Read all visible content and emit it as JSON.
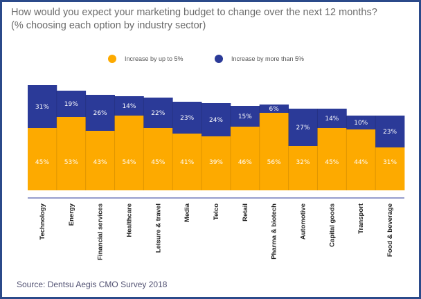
{
  "title_line1": "How would you expect your marketing budget to change over the next 12 months?",
  "title_line2": "(% choosing each option by industry sector)",
  "source": "Source: Dentsu Aegis CMO Survey 2018",
  "colors": {
    "increase_up_to_5": "#FDAA00",
    "increase_more_than_5": "#2B3A98"
  },
  "chart_data": {
    "type": "bar",
    "stacked": true,
    "title": "How would you expect your marketing budget to change over the next 12 months?",
    "subtitle": "(% choosing each option by industry sector)",
    "xlabel": "",
    "ylabel": "",
    "grid": false,
    "legend_position": "top",
    "categories": [
      "Technology",
      "Energy",
      "Financial services",
      "Healthcare",
      "Leisure & travel",
      "Media",
      "Telco",
      "Retail",
      "Pharma & biotech",
      "Automotive",
      "Capital goods",
      "Transport",
      "Food & beverage"
    ],
    "series": [
      {
        "name": "Increase by up to 5%",
        "values": [
          45,
          53,
          43,
          54,
          45,
          41,
          39,
          46,
          56,
          32,
          45,
          44,
          31
        ],
        "labels": [
          "45%",
          "53%",
          "43%",
          "54%",
          "45%",
          "41%",
          "39%",
          "46%",
          "56%",
          "32%",
          "45%",
          "44%",
          "31%"
        ]
      },
      {
        "name": "Increase by more than 5%",
        "values": [
          31,
          19,
          26,
          14,
          22,
          23,
          24,
          15,
          6,
          27,
          14,
          10,
          23
        ],
        "labels": [
          "31%",
          "19%",
          "26%",
          "14%",
          "22%",
          "23%",
          "24%",
          "15%",
          "6%",
          "27%",
          "14%",
          "10%",
          "23%"
        ]
      }
    ]
  }
}
